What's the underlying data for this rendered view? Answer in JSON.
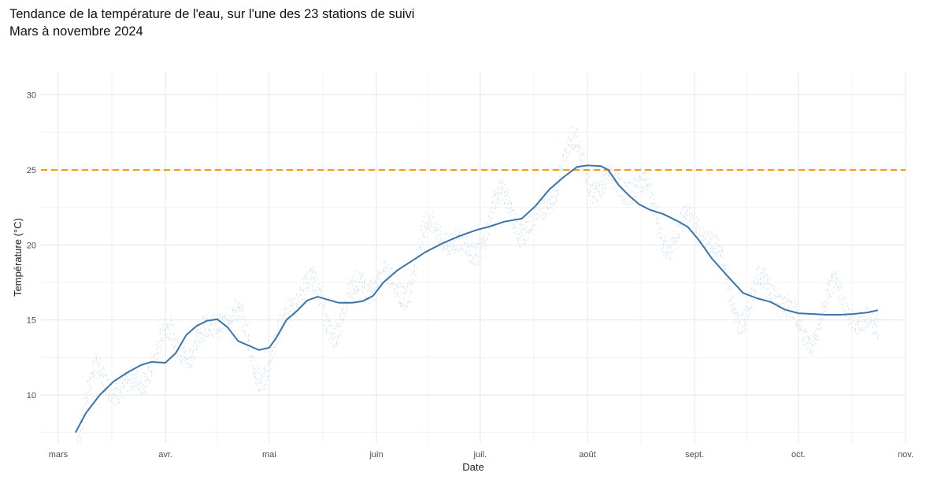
{
  "chart_data": {
    "type": "line",
    "title": "Tendance de la température de l'eau, sur l'une des 23 stations de suivi",
    "subtitle": "Mars à novembre 2024",
    "xlabel": "Date",
    "ylabel": "Température (°C)",
    "x_ticks": [
      {
        "label": "mars",
        "date": "2024-03-01"
      },
      {
        "label": "avr.",
        "date": "2024-04-01"
      },
      {
        "label": "mai",
        "date": "2024-05-01"
      },
      {
        "label": "juin",
        "date": "2024-06-01"
      },
      {
        "label": "juil.",
        "date": "2024-07-01"
      },
      {
        "label": "août",
        "date": "2024-08-01"
      },
      {
        "label": "sept.",
        "date": "2024-09-01"
      },
      {
        "label": "oct.",
        "date": "2024-10-01"
      },
      {
        "label": "nov.",
        "date": "2024-11-01"
      }
    ],
    "xlim": [
      "2024-02-25",
      "2024-11-01"
    ],
    "y_ticks": [
      10,
      15,
      20,
      25,
      30
    ],
    "ylim": [
      6.8,
      31.5
    ],
    "grid": true,
    "threshold": {
      "value": 25,
      "color": "#F59C1A",
      "style": "dashed"
    },
    "series": [
      {
        "type": "line",
        "color": "#3B75A8",
        "points": [
          [
            "2024-03-06",
            7.5
          ],
          [
            "2024-03-09",
            8.8
          ],
          [
            "2024-03-13",
            10.0
          ],
          [
            "2024-03-17",
            10.9
          ],
          [
            "2024-03-21",
            11.5
          ],
          [
            "2024-03-25",
            12.0
          ],
          [
            "2024-03-28",
            12.2
          ],
          [
            "2024-04-01",
            12.15
          ],
          [
            "2024-04-04",
            12.8
          ],
          [
            "2024-04-07",
            14.0
          ],
          [
            "2024-04-10",
            14.6
          ],
          [
            "2024-04-13",
            14.95
          ],
          [
            "2024-04-16",
            15.05
          ],
          [
            "2024-04-19",
            14.5
          ],
          [
            "2024-04-22",
            13.6
          ],
          [
            "2024-04-26",
            13.2
          ],
          [
            "2024-04-28",
            13.0
          ],
          [
            "2024-05-01",
            13.15
          ],
          [
            "2024-05-03",
            13.8
          ],
          [
            "2024-05-06",
            15.0
          ],
          [
            "2024-05-09",
            15.6
          ],
          [
            "2024-05-12",
            16.3
          ],
          [
            "2024-05-15",
            16.55
          ],
          [
            "2024-05-18",
            16.35
          ],
          [
            "2024-05-21",
            16.15
          ],
          [
            "2024-05-25",
            16.15
          ],
          [
            "2024-05-28",
            16.25
          ],
          [
            "2024-05-31",
            16.6
          ],
          [
            "2024-06-03",
            17.5
          ],
          [
            "2024-06-07",
            18.3
          ],
          [
            "2024-06-11",
            18.9
          ],
          [
            "2024-06-15",
            19.5
          ],
          [
            "2024-06-20",
            20.1
          ],
          [
            "2024-06-25",
            20.6
          ],
          [
            "2024-06-30",
            21.0
          ],
          [
            "2024-07-04",
            21.25
          ],
          [
            "2024-07-08",
            21.55
          ],
          [
            "2024-07-13",
            21.75
          ],
          [
            "2024-07-17",
            22.6
          ],
          [
            "2024-07-21",
            23.7
          ],
          [
            "2024-07-25",
            24.5
          ],
          [
            "2024-07-29",
            25.2
          ],
          [
            "2024-08-01",
            25.3
          ],
          [
            "2024-08-05",
            25.25
          ],
          [
            "2024-08-07",
            25.0
          ],
          [
            "2024-08-10",
            24.0
          ],
          [
            "2024-08-13",
            23.3
          ],
          [
            "2024-08-16",
            22.7
          ],
          [
            "2024-08-19",
            22.35
          ],
          [
            "2024-08-23",
            22.05
          ],
          [
            "2024-08-27",
            21.6
          ],
          [
            "2024-08-30",
            21.2
          ],
          [
            "2024-09-02",
            20.4
          ],
          [
            "2024-09-06",
            19.1
          ],
          [
            "2024-09-11",
            17.8
          ],
          [
            "2024-09-15",
            16.8
          ],
          [
            "2024-09-19",
            16.45
          ],
          [
            "2024-09-23",
            16.2
          ],
          [
            "2024-09-27",
            15.7
          ],
          [
            "2024-10-01",
            15.45
          ],
          [
            "2024-10-05",
            15.4
          ],
          [
            "2024-10-09",
            15.35
          ],
          [
            "2024-10-13",
            15.35
          ],
          [
            "2024-10-17",
            15.4
          ],
          [
            "2024-10-21",
            15.5
          ],
          [
            "2024-10-24",
            15.65
          ]
        ]
      }
    ]
  }
}
